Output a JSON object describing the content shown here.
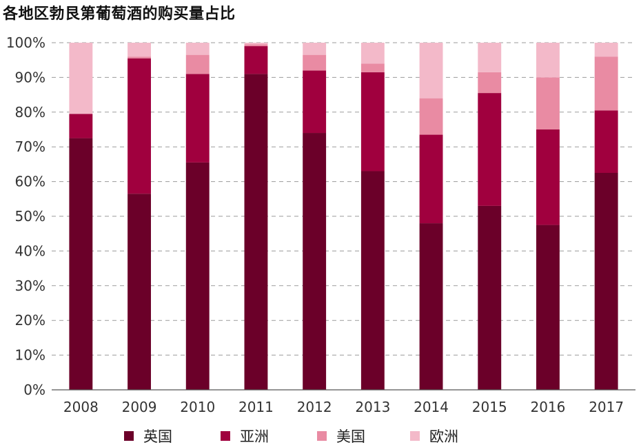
{
  "chart_data": {
    "type": "bar",
    "stacked": true,
    "title": "各地区勃艮第葡萄酒的购买量占比",
    "categories": [
      "2008",
      "2009",
      "2010",
      "2011",
      "2012",
      "2013",
      "2014",
      "2015",
      "2016",
      "2017"
    ],
    "series": [
      {
        "name": "英国",
        "color": "#6b0029",
        "values": [
          72.5,
          56.5,
          65.5,
          91,
          74,
          63,
          48,
          53,
          47.5,
          62.5
        ]
      },
      {
        "name": "亚洲",
        "color": "#a0003e",
        "values": [
          7,
          39,
          25.5,
          8,
          18,
          28.5,
          25.5,
          32.5,
          27.5,
          18
        ]
      },
      {
        "name": "美国",
        "color": "#e98ba3",
        "values": [
          0,
          0.5,
          5.5,
          0.5,
          4.5,
          2.5,
          10.5,
          6,
          15,
          15.5
        ]
      },
      {
        "name": "欧洲",
        "color": "#f3b9c9",
        "values": [
          20.5,
          4,
          3.5,
          0.5,
          3.5,
          6,
          16,
          8.5,
          10,
          4
        ]
      }
    ],
    "y_ticks": [
      "0%",
      "10%",
      "20%",
      "30%",
      "40%",
      "50%",
      "60%",
      "70%",
      "80%",
      "90%",
      "100%"
    ],
    "ylim": [
      0,
      100
    ],
    "xlabel": "",
    "ylabel": "",
    "grid": true,
    "legend_position": "bottom"
  }
}
